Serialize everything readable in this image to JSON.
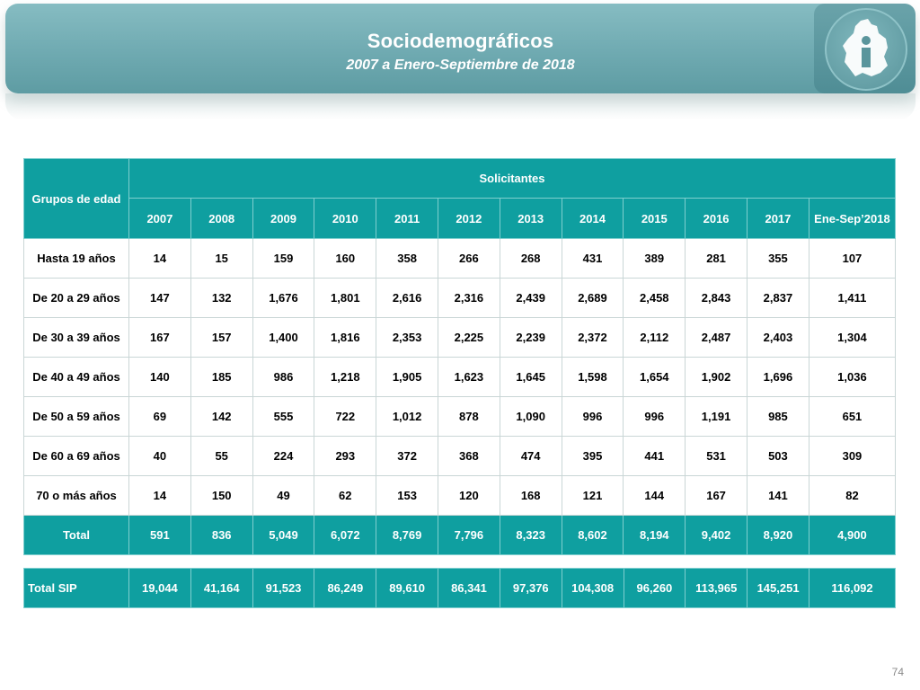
{
  "header": {
    "title": "Sociodemográficos",
    "subtitle": "2007 a Enero-Septiembre de 2018"
  },
  "colors": {
    "banner": "#6faab1",
    "table_header": "#0f9fa0",
    "text_white": "#ffffff"
  },
  "table": {
    "group_header": "Grupos de edad",
    "solicitantes_header": "Solicitantes",
    "years": [
      "2007",
      "2008",
      "2009",
      "2010",
      "2011",
      "2012",
      "2013",
      "2014",
      "2015",
      "2016",
      "2017",
      "Ene-Sep’2018"
    ],
    "rows": [
      {
        "label": "Hasta 19 años",
        "values": [
          "14",
          "15",
          "159",
          "160",
          "358",
          "266",
          "268",
          "431",
          "389",
          "281",
          "355",
          "107"
        ]
      },
      {
        "label": "De 20 a 29 años",
        "values": [
          "147",
          "132",
          "1,676",
          "1,801",
          "2,616",
          "2,316",
          "2,439",
          "2,689",
          "2,458",
          "2,843",
          "2,837",
          "1,411"
        ]
      },
      {
        "label": "De 30 a 39 años",
        "values": [
          "167",
          "157",
          "1,400",
          "1,816",
          "2,353",
          "2,225",
          "2,239",
          "2,372",
          "2,112",
          "2,487",
          "2,403",
          "1,304"
        ]
      },
      {
        "label": "De 40 a 49 años",
        "values": [
          "140",
          "185",
          "986",
          "1,218",
          "1,905",
          "1,623",
          "1,645",
          "1,598",
          "1,654",
          "1,902",
          "1,696",
          "1,036"
        ]
      },
      {
        "label": "De 50 a 59 años",
        "values": [
          "69",
          "142",
          "555",
          "722",
          "1,012",
          "878",
          "1,090",
          "996",
          "996",
          "1,191",
          "985",
          "651"
        ]
      },
      {
        "label": "De 60 a 69 años",
        "values": [
          "40",
          "55",
          "224",
          "293",
          "372",
          "368",
          "474",
          "395",
          "441",
          "531",
          "503",
          "309"
        ]
      },
      {
        "label": "70 o más años",
        "values": [
          "14",
          "150",
          "49",
          "62",
          "153",
          "120",
          "168",
          "121",
          "144",
          "167",
          "141",
          "82"
        ]
      }
    ],
    "total": {
      "label": "Total",
      "values": [
        "591",
        "836",
        "5,049",
        "6,072",
        "8,769",
        "7,796",
        "8,323",
        "8,602",
        "8,194",
        "9,402",
        "8,920",
        "4,900"
      ]
    },
    "total_sip": {
      "label": "Total SIP",
      "values": [
        "19,044",
        "41,164",
        "91,523",
        "86,249",
        "89,610",
        "86,341",
        "97,376",
        "104,308",
        "96,260",
        "113,965",
        "145,251",
        "116,092"
      ]
    }
  },
  "footer": {
    "page_number": "74"
  }
}
